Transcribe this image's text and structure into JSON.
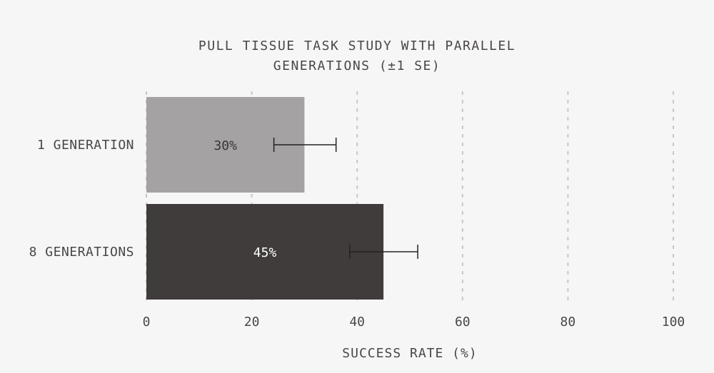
{
  "chart_data": {
    "type": "bar",
    "orientation": "horizontal",
    "title_lines": [
      "PULL TISSUE TASK STUDY WITH PARALLEL",
      "GENERATIONS (±1 SE)"
    ],
    "xlabel": "SUCCESS RATE (%)",
    "ylabel": "",
    "xlim": [
      0,
      100
    ],
    "xticks": [
      0,
      20,
      40,
      60,
      80,
      100
    ],
    "tick_labels": [
      "0",
      "20",
      "40",
      "60",
      "80",
      "100"
    ],
    "grid": "vertical dotted",
    "categories": [
      "1 GENERATION",
      "8 GENERATIONS"
    ],
    "values": [
      30,
      45
    ],
    "data_labels": [
      "30%",
      "45%"
    ],
    "error_low": [
      24.2,
      38.6
    ],
    "error_high": [
      36.0,
      51.5
    ],
    "colors": [
      "#a4a2a2",
      "#403c3c"
    ],
    "label_colors": [
      "#3a3636",
      "#ffffff"
    ],
    "background": "#f6f6f6"
  }
}
